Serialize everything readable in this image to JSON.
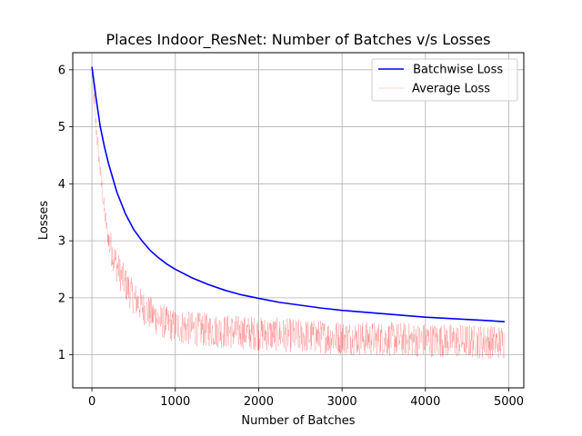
{
  "chart_data": {
    "type": "line",
    "title": "Places Indoor_ResNet: Number of Batches v/s Losses",
    "xlabel": "Number of Batches",
    "ylabel": "Losses",
    "xlim": [
      -230,
      5180
    ],
    "ylim": [
      0.42,
      6.3
    ],
    "xticks": [
      0,
      1000,
      2000,
      3000,
      4000,
      5000
    ],
    "yticks": [
      1,
      2,
      3,
      4,
      5,
      6
    ],
    "xtick_labels": [
      "0",
      "1000",
      "2000",
      "3000",
      "4000",
      "5000"
    ],
    "ytick_labels": [
      "1",
      "2",
      "3",
      "4",
      "5",
      "6"
    ],
    "grid": true,
    "legend_position": "top-right",
    "series": [
      {
        "name": " Batchwise Loss",
        "color": "#0000ff",
        "style": "solid",
        "x": [
          0,
          50,
          100,
          150,
          200,
          300,
          400,
          500,
          600,
          700,
          800,
          900,
          1000,
          1200,
          1400,
          1600,
          1800,
          2000,
          2250,
          2500,
          2750,
          3000,
          3250,
          3500,
          3750,
          4000,
          4250,
          4500,
          4750,
          4950
        ],
        "y": [
          6.05,
          5.5,
          5.0,
          4.65,
          4.35,
          3.85,
          3.48,
          3.2,
          3.0,
          2.83,
          2.7,
          2.59,
          2.5,
          2.35,
          2.23,
          2.13,
          2.05,
          1.99,
          1.92,
          1.87,
          1.82,
          1.78,
          1.75,
          1.72,
          1.69,
          1.66,
          1.64,
          1.62,
          1.6,
          1.58
        ]
      },
      {
        "name": "Average Loss",
        "color": "#ff0000",
        "style": "noisy-thin",
        "x": [
          0,
          50,
          100,
          150,
          200,
          300,
          400,
          500,
          600,
          700,
          800,
          900,
          1000,
          1250,
          1500,
          1750,
          2000,
          2500,
          3000,
          3500,
          4000,
          4500,
          4950
        ],
        "y": [
          6.0,
          5.0,
          4.2,
          3.5,
          3.0,
          2.55,
          2.25,
          2.0,
          1.85,
          1.72,
          1.62,
          1.55,
          1.5,
          1.45,
          1.42,
          1.4,
          1.37,
          1.33,
          1.3,
          1.28,
          1.26,
          1.24,
          1.22
        ],
        "noise_amplitude": 0.3
      }
    ]
  }
}
